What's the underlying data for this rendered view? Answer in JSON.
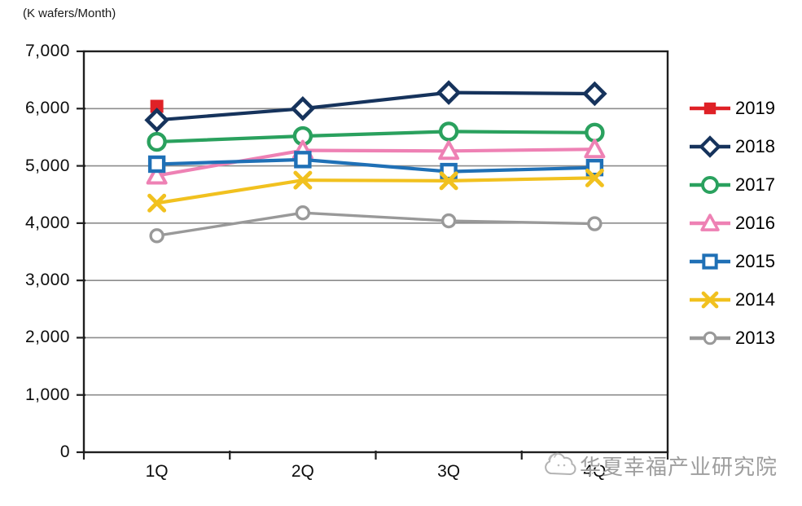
{
  "unit_label": "(K wafers/Month)",
  "watermark": {
    "text": "华夏幸福产业研究院",
    "logo": "cloud-mascot-logo"
  },
  "colors": {
    "background": "#ffffff",
    "axis": "#1f1f1f",
    "gridline": "#8c8c8c",
    "tick_label": "#0d0d0d",
    "watermark_gray": "#9e9e9e",
    "series_2019": "#df2126",
    "series_2018": "#16335c",
    "series_2017": "#2aa15e",
    "series_2016": "#ee81b4",
    "series_2015": "#1f70b6",
    "series_2014": "#f1c11f",
    "series_2013": "#999999"
  },
  "chart_data": {
    "type": "line",
    "title": "",
    "unit": "K wafers/Month",
    "categories": [
      "1Q",
      "2Q",
      "3Q",
      "4Q"
    ],
    "xlabel": "",
    "ylabel": "(K wafers/Month)",
    "ylim": [
      0,
      7000
    ],
    "ytick_step": 1000,
    "yticklabels": [
      "0",
      "1,000",
      "2,000",
      "3,000",
      "4,000",
      "5,000",
      "6,000",
      "7,000"
    ],
    "grid": "horizontal",
    "legend_position": "right",
    "series": [
      {
        "name": "2019",
        "color": "#df2126",
        "marker": "square-filled",
        "values": [
          6040,
          null,
          null,
          null
        ]
      },
      {
        "name": "2018",
        "color": "#16335c",
        "marker": "diamond-open",
        "values": [
          5800,
          6000,
          6280,
          6260
        ]
      },
      {
        "name": "2017",
        "color": "#2aa15e",
        "marker": "circle-open",
        "values": [
          5420,
          5520,
          5600,
          5580
        ]
      },
      {
        "name": "2016",
        "color": "#ee81b4",
        "marker": "triangle-open",
        "values": [
          4830,
          5270,
          5260,
          5290
        ]
      },
      {
        "name": "2015",
        "color": "#1f70b6",
        "marker": "square-open",
        "values": [
          5030,
          5110,
          4900,
          4970
        ]
      },
      {
        "name": "2014",
        "color": "#f1c11f",
        "marker": "x",
        "values": [
          4350,
          4750,
          4740,
          4790
        ]
      },
      {
        "name": "2013",
        "color": "#999999",
        "marker": "circle-open-small",
        "values": [
          3780,
          4180,
          4040,
          3990
        ]
      }
    ]
  }
}
